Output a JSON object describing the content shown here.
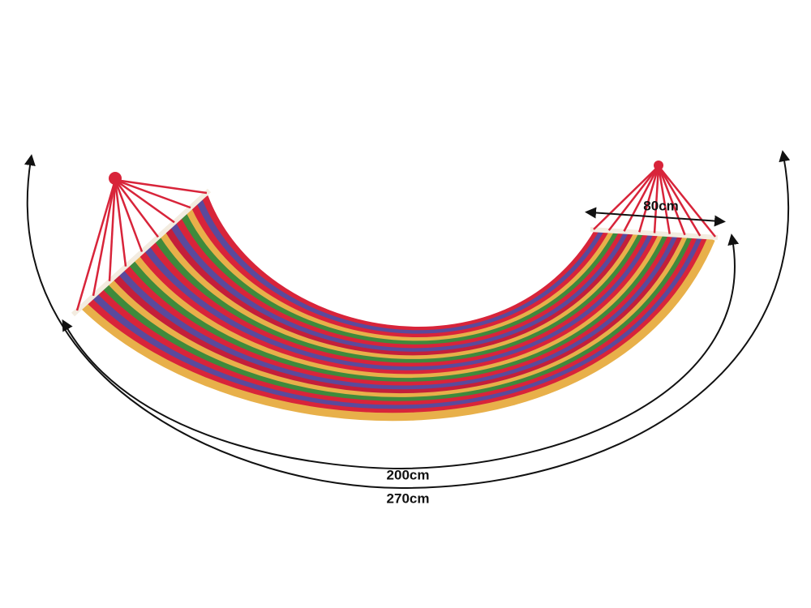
{
  "dimensions": {
    "width": "80cm",
    "length": "200cm",
    "total_length": "270cm"
  }
}
